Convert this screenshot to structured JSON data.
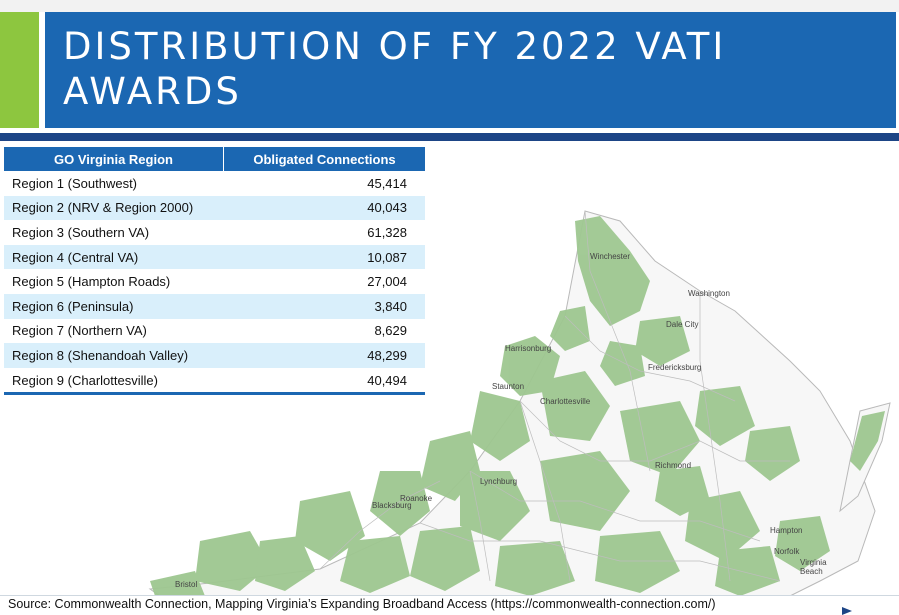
{
  "title": "DISTRIBUTION OF FY 2022 VATI AWARDS",
  "table": {
    "headers": [
      "GO Virginia Region",
      "Obligated Connections"
    ],
    "rows": [
      {
        "region": "Region 1 (Southwest)",
        "connections": "45,414"
      },
      {
        "region": "Region 2 (NRV & Region 2000)",
        "connections": "40,043"
      },
      {
        "region": "Region 3 (Southern VA)",
        "connections": "61,328"
      },
      {
        "region": "Region 4 (Central VA)",
        "connections": "10,087"
      },
      {
        "region": "Region 5 (Hampton Roads)",
        "connections": "27,004"
      },
      {
        "region": "Region 6 (Peninsula)",
        "connections": "3,840"
      },
      {
        "region": "Region 7 (Northern VA)",
        "connections": "8,629"
      },
      {
        "region": "Region 8 (Shenandoah Valley)",
        "connections": "48,299"
      },
      {
        "region": "Region 9 (Charlottesville)",
        "connections": "40,494"
      }
    ]
  },
  "map": {
    "cities": [
      "Washington",
      "Dale City",
      "Fredericksburg",
      "Harrisonburg",
      "Staunton",
      "Charlottesville",
      "Richmond",
      "Lynchburg",
      "Roanoke",
      "Blacksburg",
      "Hampton",
      "Norfolk",
      "Virginia Beach",
      "Bristol",
      "Winchester"
    ],
    "colors": {
      "award_area": "#9ec790",
      "state_fill": "#f7f7f7",
      "county_lines": "#b9b9b9"
    }
  },
  "source": "Source: Commonwealth Connection, Mapping Virginia’s Expanding Broadband Access (https://commonwealth-connection.com/)"
}
